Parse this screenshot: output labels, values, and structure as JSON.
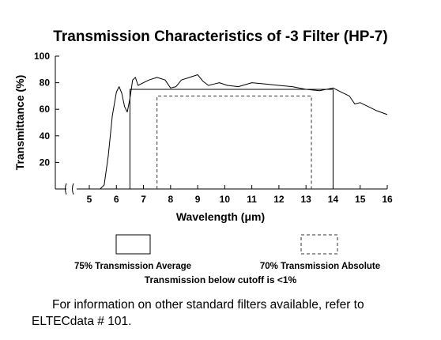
{
  "chart_data": {
    "type": "line",
    "title": "Transmission Characteristics of -3 Filter (HP-7)",
    "xlabel": "Wavelength (μm)",
    "ylabel": "Transmittance (%)",
    "xlim": [
      4,
      16
    ],
    "ylim": [
      0,
      100
    ],
    "x_ticks": [
      "5",
      "6",
      "7",
      "8",
      "9",
      "10",
      "11",
      "12",
      "13",
      "14",
      "15",
      "16"
    ],
    "y_ticks": [
      "20",
      "40",
      "60",
      "80",
      "100"
    ],
    "axis_break": true,
    "grid": false,
    "series": [
      {
        "x": [
          5.4,
          5.55,
          5.7,
          5.85,
          6.0,
          6.1,
          6.2,
          6.3,
          6.4,
          6.5,
          6.6,
          6.7,
          6.8,
          6.9,
          7.0,
          7.2,
          7.5,
          7.8,
          8.0,
          8.2,
          8.4,
          8.7,
          9.0,
          9.2,
          9.4,
          9.6,
          9.8,
          10.1,
          10.5,
          11.0,
          11.5,
          12.0,
          12.5,
          13.0,
          13.5,
          14.0,
          14.3,
          14.6,
          14.8,
          15.0,
          15.3,
          15.6,
          16.0
        ],
        "y": [
          0,
          3,
          25,
          55,
          73,
          77,
          72,
          62,
          58,
          68,
          82,
          84,
          78,
          79,
          80,
          82,
          84,
          82,
          76,
          77,
          82,
          84,
          86,
          81,
          78,
          79,
          80,
          78,
          77,
          80,
          79,
          78,
          77,
          75,
          74,
          76,
          73,
          70,
          64,
          65,
          62,
          59,
          56
        ]
      }
    ],
    "bands": [
      {
        "name": "75% Transmission Average",
        "x_start": 6.5,
        "x_end": 14.0,
        "y": 75,
        "style": "solid"
      },
      {
        "name": "70% Transmission Absolute",
        "x_start": 7.5,
        "x_end": 13.2,
        "y": 70,
        "style": "dashed"
      }
    ]
  },
  "legend": {
    "avg_label": "75% Transmission Average",
    "abs_label": "70% Transmission Absolute"
  },
  "note": "Transmission below cutoff is <1%",
  "info": "For information on other standard filters available, refer to ELTECdata # 101."
}
